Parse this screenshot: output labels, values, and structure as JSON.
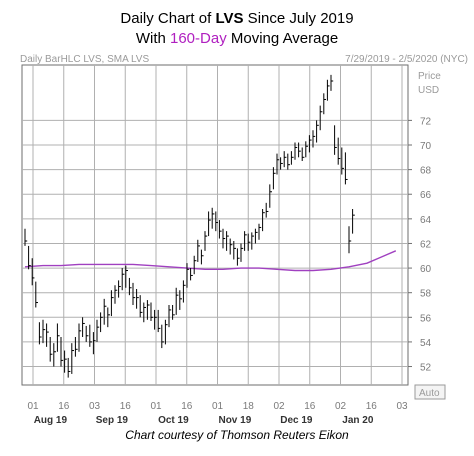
{
  "header": {
    "line1_pre": "Daily Chart of ",
    "line1_ticker": "LVS",
    "line1_post": " Since July 2019",
    "line2_pre": "With ",
    "line2_accent": "160-Day",
    "line2_post": " Moving Average"
  },
  "meta": {
    "left": "Daily BarHLC LVS, SMA LVS",
    "right": "7/29/2019 - 2/5/2020 (NYC)"
  },
  "axis": {
    "price_label": "Price",
    "currency_label": "USD",
    "auto_label": "Auto"
  },
  "credit": "Chart courtesy of Thomson Reuters Eikon",
  "colors": {
    "bars": "#000000",
    "sma": "#a040c0",
    "grid": "#b0b0b0",
    "accent": "#b020c0"
  },
  "chart_data": {
    "type": "line",
    "title": "Daily Chart of LVS Since July 2019 With 160-Day Moving Average",
    "ylim": [
      50.5,
      76.5
    ],
    "y_ticks": [
      52,
      54,
      56,
      58,
      60,
      62,
      64,
      66,
      68,
      70,
      72
    ],
    "x_tick_labels": [
      "01",
      "16",
      "03",
      "16",
      "01",
      "16",
      "01",
      "18",
      "02",
      "16",
      "02",
      "16",
      "03"
    ],
    "month_labels": [
      "Aug 19",
      "Sep 19",
      "Oct 19",
      "Nov 19",
      "Dec 19",
      "Jan 20"
    ],
    "grid": true,
    "series": [
      {
        "kind": "bar-hlc",
        "values": [
          [
            63.2,
            61.8,
            62.2
          ],
          [
            61.8,
            59.9,
            60.2
          ],
          [
            60.8,
            58.6,
            59.2
          ],
          [
            58.9,
            56.8,
            57.2
          ],
          [
            55.6,
            53.8,
            54.4
          ],
          [
            55.8,
            53.9,
            55.0
          ],
          [
            55.5,
            53.6,
            54.8
          ],
          [
            54.4,
            52.4,
            53.0
          ],
          [
            53.9,
            52.0,
            53.2
          ],
          [
            55.5,
            53.2,
            54.5
          ],
          [
            54.4,
            52.0,
            52.5
          ],
          [
            53.3,
            51.5,
            52.6
          ],
          [
            52.7,
            51.1,
            51.6
          ],
          [
            53.9,
            51.4,
            53.3
          ],
          [
            54.4,
            52.8,
            53.4
          ],
          [
            55.5,
            53.2,
            54.9
          ],
          [
            56.0,
            54.4,
            55.5
          ],
          [
            55.3,
            54.0,
            54.5
          ],
          [
            55.4,
            53.6,
            54.0
          ],
          [
            54.8,
            53.0,
            54.1
          ],
          [
            55.8,
            54.0,
            55.2
          ],
          [
            56.4,
            54.8,
            56.0
          ],
          [
            57.5,
            55.4,
            56.9
          ],
          [
            56.8,
            55.2,
            56.2
          ],
          [
            58.2,
            56.1,
            57.6
          ],
          [
            58.6,
            57.1,
            58.2
          ],
          [
            59.0,
            57.6,
            58.5
          ],
          [
            60.0,
            58.2,
            59.5
          ],
          [
            60.2,
            58.4,
            59.8
          ],
          [
            59.2,
            57.8,
            58.4
          ],
          [
            58.8,
            57.0,
            57.6
          ],
          [
            58.3,
            56.7,
            57.6
          ],
          [
            57.8,
            56.0,
            56.4
          ],
          [
            57.2,
            55.6,
            56.8
          ],
          [
            57.4,
            55.8,
            57.0
          ],
          [
            57.2,
            55.7,
            56.0
          ],
          [
            56.6,
            55.0,
            56.0
          ],
          [
            56.6,
            54.8,
            55.1
          ],
          [
            55.4,
            53.5,
            54.0
          ],
          [
            55.8,
            53.8,
            55.4
          ],
          [
            57.0,
            55.2,
            56.6
          ],
          [
            57.0,
            55.8,
            56.2
          ],
          [
            58.4,
            56.2,
            57.8
          ],
          [
            58.2,
            56.6,
            57.5
          ],
          [
            59.0,
            57.2,
            58.6
          ],
          [
            60.4,
            58.4,
            59.9
          ],
          [
            60.0,
            59.0,
            59.4
          ],
          [
            61.0,
            59.5,
            60.6
          ],
          [
            62.3,
            60.5,
            61.8
          ],
          [
            61.5,
            60.3,
            61.0
          ],
          [
            63.0,
            61.4,
            62.6
          ],
          [
            64.6,
            62.6,
            63.9
          ],
          [
            64.9,
            63.2,
            64.4
          ],
          [
            64.6,
            63.0,
            63.7
          ],
          [
            63.9,
            62.4,
            63.0
          ],
          [
            63.2,
            61.6,
            62.4
          ],
          [
            63.0,
            61.4,
            62.6
          ],
          [
            62.4,
            61.1,
            61.9
          ],
          [
            62.2,
            60.7,
            61.6
          ],
          [
            61.6,
            60.2,
            60.8
          ],
          [
            62.0,
            60.5,
            61.6
          ],
          [
            63.0,
            61.4,
            62.7
          ],
          [
            62.8,
            61.4,
            62.1
          ],
          [
            62.9,
            61.5,
            62.6
          ],
          [
            63.2,
            62.0,
            62.9
          ],
          [
            63.6,
            62.3,
            63.3
          ],
          [
            64.8,
            63.0,
            64.5
          ],
          [
            65.3,
            64.1,
            64.6
          ],
          [
            66.8,
            64.9,
            66.2
          ],
          [
            68.2,
            66.4,
            67.7
          ],
          [
            69.3,
            67.6,
            68.8
          ],
          [
            69.0,
            68.0,
            68.5
          ],
          [
            69.5,
            68.2,
            69.0
          ],
          [
            69.3,
            68.0,
            68.4
          ],
          [
            69.5,
            68.4,
            69.0
          ],
          [
            70.2,
            68.8,
            69.8
          ],
          [
            70.2,
            69.0,
            69.5
          ],
          [
            69.8,
            68.7,
            69.0
          ],
          [
            70.3,
            69.0,
            69.9
          ],
          [
            70.8,
            69.4,
            70.4
          ],
          [
            71.2,
            69.8,
            70.7
          ],
          [
            72.0,
            70.2,
            71.6
          ],
          [
            73.2,
            71.2,
            72.7
          ],
          [
            74.2,
            72.5,
            73.7
          ],
          [
            75.3,
            73.6,
            74.8
          ],
          [
            75.7,
            74.4,
            75.2
          ],
          [
            71.6,
            69.2,
            69.8
          ],
          [
            70.6,
            68.4,
            68.9
          ],
          [
            69.8,
            67.6,
            68.1
          ],
          [
            69.4,
            66.8,
            67.2
          ],
          [
            63.4,
            61.2,
            62.2
          ],
          [
            64.8,
            62.8,
            64.3
          ]
        ]
      },
      {
        "name": "SMA",
        "kind": "line",
        "values": [
          [
            0,
            60.1
          ],
          [
            5,
            60.2
          ],
          [
            10,
            60.2
          ],
          [
            15,
            60.3
          ],
          [
            20,
            60.3
          ],
          [
            25,
            60.3
          ],
          [
            30,
            60.3
          ],
          [
            35,
            60.2
          ],
          [
            40,
            60.1
          ],
          [
            45,
            60.0
          ],
          [
            50,
            59.9
          ],
          [
            55,
            59.9
          ],
          [
            60,
            60.0
          ],
          [
            65,
            60.0
          ],
          [
            70,
            59.9
          ],
          [
            75,
            59.8
          ],
          [
            80,
            59.8
          ],
          [
            85,
            59.9
          ],
          [
            90,
            60.1
          ],
          [
            95,
            60.4
          ],
          [
            99,
            60.9
          ],
          [
            103,
            61.4
          ]
        ]
      }
    ]
  }
}
